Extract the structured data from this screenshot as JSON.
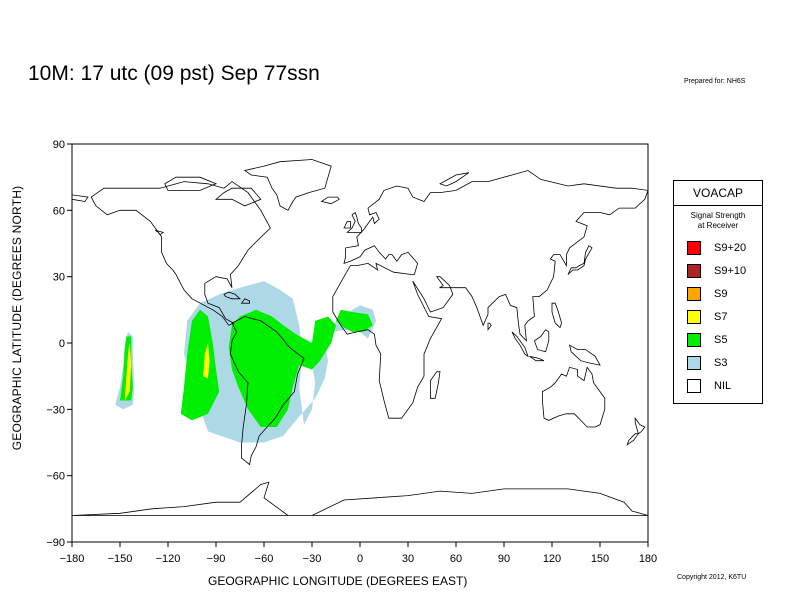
{
  "title": "10M:  17 utc (09 pst) Sep 77ssn",
  "prepared_for": "Prepared for: NH6S",
  "copyright": "Copyright 2012, K6TU",
  "axes": {
    "xlabel": "GEOGRAPHIC LONGITUDE (DEGREES EAST)",
    "ylabel": "GEOGRAPHIC LATITUDE (DEGREES NORTH)",
    "xticks": [
      "−180",
      "−150",
      "−120",
      "−90",
      "−60",
      "−30",
      "0",
      "30",
      "60",
      "90",
      "120",
      "150",
      "180"
    ],
    "yticks": [
      "90",
      "60",
      "30",
      "0",
      "−30",
      "−60",
      "−90"
    ],
    "xlim": [
      -180,
      180
    ],
    "ylim": [
      -90,
      90
    ]
  },
  "legend": {
    "title": "VOACAP",
    "subtitle_line1": "Signal Strength",
    "subtitle_line2": "at Receiver",
    "items": [
      {
        "label": "S9+20",
        "color": "#ff0000"
      },
      {
        "label": "S9+10",
        "color": "#b22222"
      },
      {
        "label": "S9",
        "color": "#ffa500"
      },
      {
        "label": "S7",
        "color": "#ffff00"
      },
      {
        "label": "S5",
        "color": "#00ee00"
      },
      {
        "label": "S3",
        "color": "#add8e6"
      },
      {
        "label": "NIL",
        "color": "#ffffff"
      }
    ]
  },
  "coverage": {
    "levels": [
      {
        "level": "S3",
        "color": "#add8e6",
        "regions": [
          [
            [
              -35,
              -37
            ],
            [
              -30,
              -30
            ],
            [
              -28,
              -18
            ],
            [
              -30,
              -10
            ],
            [
              -24,
              -2
            ],
            [
              -20,
              6
            ],
            [
              -12,
              12
            ],
            [
              0,
              17
            ],
            [
              8,
              15
            ],
            [
              10,
              10
            ],
            [
              5,
              2
            ],
            [
              0,
              5
            ],
            [
              -8,
              6
            ],
            [
              -18,
              5
            ],
            [
              -22,
              0
            ],
            [
              -20,
              -8
            ],
            [
              -22,
              -16
            ],
            [
              -28,
              -25
            ],
            [
              -40,
              -35
            ],
            [
              -48,
              -42
            ],
            [
              -60,
              -45
            ],
            [
              -75,
              -45
            ],
            [
              -95,
              -40
            ],
            [
              -100,
              -30
            ],
            [
              -105,
              -15
            ],
            [
              -110,
              -5
            ],
            [
              -108,
              10
            ],
            [
              -100,
              18
            ],
            [
              -88,
              22
            ],
            [
              -75,
              25
            ],
            [
              -60,
              28
            ],
            [
              -50,
              24
            ],
            [
              -42,
              20
            ],
            [
              -38,
              8
            ],
            [
              -36,
              -5
            ],
            [
              -38,
              -20
            ]
          ],
          [
            [
              -153,
              -28
            ],
            [
              -150,
              -20
            ],
            [
              -148,
              -10
            ],
            [
              -147,
              0
            ],
            [
              -145,
              5
            ],
            [
              -142,
              3
            ],
            [
              -142,
              -5
            ],
            [
              -141,
              -20
            ],
            [
              -142,
              -28
            ],
            [
              -148,
              -30
            ]
          ]
        ]
      },
      {
        "level": "S5",
        "color": "#00ee00",
        "regions": [
          [
            [
              -76,
              -20
            ],
            [
              -80,
              -12
            ],
            [
              -82,
              -2
            ],
            [
              -80,
              8
            ],
            [
              -75,
              12
            ],
            [
              -65,
              15
            ],
            [
              -55,
              12
            ],
            [
              -48,
              8
            ],
            [
              -40,
              4
            ],
            [
              -30,
              0
            ],
            [
              -28,
              10
            ],
            [
              -20,
              12
            ],
            [
              -15,
              8
            ],
            [
              -18,
              0
            ],
            [
              -25,
              -8
            ],
            [
              -30,
              -12
            ],
            [
              -38,
              -10
            ],
            [
              -42,
              -20
            ],
            [
              -45,
              -30
            ],
            [
              -52,
              -38
            ],
            [
              -62,
              -38
            ],
            [
              -70,
              -30
            ]
          ],
          [
            [
              -112,
              -32
            ],
            [
              -110,
              -20
            ],
            [
              -108,
              -5
            ],
            [
              -105,
              10
            ],
            [
              -100,
              15
            ],
            [
              -95,
              12
            ],
            [
              -92,
              0
            ],
            [
              -90,
              -12
            ],
            [
              -88,
              -22
            ],
            [
              -95,
              -32
            ],
            [
              -105,
              -35
            ]
          ],
          [
            [
              -150,
              -26
            ],
            [
              -148,
              -15
            ],
            [
              -147,
              -3
            ],
            [
              -146,
              3
            ],
            [
              -143,
              3
            ],
            [
              -143,
              -8
            ],
            [
              -142,
              -20
            ],
            [
              -143,
              -26
            ]
          ],
          [
            [
              -15,
              10
            ],
            [
              -12,
              15
            ],
            [
              -5,
              14
            ],
            [
              5,
              13
            ],
            [
              8,
              8
            ],
            [
              2,
              5
            ],
            [
              -5,
              5
            ],
            [
              -10,
              7
            ]
          ]
        ]
      },
      {
        "level": "S7",
        "color": "#ffff00",
        "regions": [
          [
            [
              -147,
              -26
            ],
            [
              -146,
              -15
            ],
            [
              -145,
              -5
            ],
            [
              -144,
              0
            ],
            [
              -143,
              -10
            ],
            [
              -144,
              -22
            ]
          ],
          [
            [
              -98,
              -15
            ],
            [
              -97,
              -5
            ],
            [
              -95,
              0
            ],
            [
              -94,
              -8
            ],
            [
              -95,
              -16
            ]
          ]
        ]
      }
    ]
  }
}
